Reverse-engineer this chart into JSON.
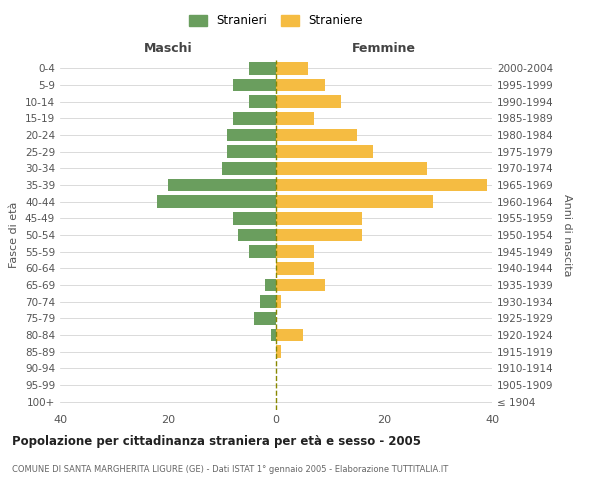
{
  "age_groups": [
    "0-4",
    "5-9",
    "10-14",
    "15-19",
    "20-24",
    "25-29",
    "30-34",
    "35-39",
    "40-44",
    "45-49",
    "50-54",
    "55-59",
    "60-64",
    "65-69",
    "70-74",
    "75-79",
    "80-84",
    "85-89",
    "90-94",
    "95-99",
    "100+"
  ],
  "birth_years": [
    "2000-2004",
    "1995-1999",
    "1990-1994",
    "1985-1989",
    "1980-1984",
    "1975-1979",
    "1970-1974",
    "1965-1969",
    "1960-1964",
    "1955-1959",
    "1950-1954",
    "1945-1949",
    "1940-1944",
    "1935-1939",
    "1930-1934",
    "1925-1929",
    "1920-1924",
    "1915-1919",
    "1910-1914",
    "1905-1909",
    "≤ 1904"
  ],
  "maschi": [
    5,
    8,
    5,
    8,
    9,
    9,
    10,
    20,
    22,
    8,
    7,
    5,
    0,
    2,
    3,
    4,
    1,
    0,
    0,
    0,
    0
  ],
  "femmine": [
    6,
    9,
    12,
    7,
    15,
    18,
    28,
    39,
    29,
    16,
    16,
    7,
    7,
    9,
    1,
    0,
    5,
    1,
    0,
    0,
    0
  ],
  "color_maschi": "#6a9e5e",
  "color_femmine": "#f5bc42",
  "title": "Popolazione per cittadinanza straniera per età e sesso - 2005",
  "subtitle": "COMUNE DI SANTA MARGHERITA LIGURE (GE) - Dati ISTAT 1° gennaio 2005 - Elaborazione TUTTITALIA.IT",
  "xlabel_left": "Maschi",
  "xlabel_right": "Femmine",
  "ylabel_left": "Fasce di età",
  "ylabel_right": "Anni di nascita",
  "legend_maschi": "Stranieri",
  "legend_femmine": "Straniere",
  "xlim": 40,
  "background_color": "#ffffff",
  "grid_color": "#cccccc"
}
